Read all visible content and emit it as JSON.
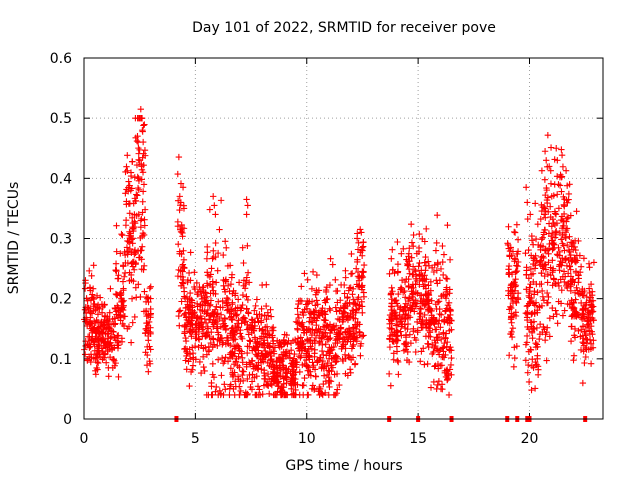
{
  "chart_data": {
    "type": "scatter",
    "title": "Day 101 of 2022, SRMTID for receiver pove",
    "xlabel": "GPS time / hours",
    "ylabel": "SRMTID / TECUs",
    "xlim": [
      0,
      23.3
    ],
    "ylim": [
      0,
      0.6
    ],
    "x_ticks": [
      0,
      5,
      10,
      15,
      20
    ],
    "x_tick_labels": [
      "0",
      "5",
      "10",
      "15",
      "20"
    ],
    "y_ticks": [
      0,
      0.1,
      0.2,
      0.3,
      0.4,
      0.5,
      0.6
    ],
    "y_tick_labels": [
      "0",
      "0.1",
      "0.2",
      "0.3",
      "0.4",
      "0.5",
      "0.6"
    ],
    "grid": true,
    "marker": "+",
    "color": "#ff0000",
    "series": [
      {
        "name": "SRMTID",
        "segments": [
          {
            "t0": 0.0,
            "t1": 0.5,
            "mean": 0.17,
            "spread": 0.035
          },
          {
            "t0": 0.5,
            "t1": 1.4,
            "mean": 0.14,
            "spread": 0.03
          },
          {
            "t0": 1.4,
            "t1": 1.8,
            "mean": 0.2,
            "spread": 0.06
          },
          {
            "t0": 1.8,
            "t1": 2.3,
            "mean": 0.29,
            "spread": 0.08
          },
          {
            "t0": 2.3,
            "t1": 2.75,
            "mean": 0.37,
            "spread": 0.09
          },
          {
            "t0": 2.75,
            "t1": 3.0,
            "mean": 0.16,
            "spread": 0.04
          },
          {
            "t0": 4.2,
            "t1": 4.5,
            "mean": 0.28,
            "spread": 0.08
          },
          {
            "t0": 4.5,
            "t1": 5.5,
            "mean": 0.16,
            "spread": 0.04
          },
          {
            "t0": 5.5,
            "t1": 6.4,
            "mean": 0.17,
            "spread": 0.07
          },
          {
            "t0": 6.4,
            "t1": 7.5,
            "mean": 0.14,
            "spread": 0.06
          },
          {
            "t0": 7.5,
            "t1": 8.5,
            "mean": 0.11,
            "spread": 0.04
          },
          {
            "t0": 8.5,
            "t1": 9.5,
            "mean": 0.08,
            "spread": 0.03
          },
          {
            "t0": 9.5,
            "t1": 10.3,
            "mean": 0.13,
            "spread": 0.05
          },
          {
            "t0": 10.3,
            "t1": 11.5,
            "mean": 0.13,
            "spread": 0.05
          },
          {
            "t0": 11.5,
            "t1": 12.2,
            "mean": 0.16,
            "spread": 0.04
          },
          {
            "t0": 12.2,
            "t1": 12.6,
            "mean": 0.22,
            "spread": 0.06
          },
          {
            "t0": 13.7,
            "t1": 14.5,
            "mean": 0.17,
            "spread": 0.05
          },
          {
            "t0": 14.5,
            "t1": 15.5,
            "mean": 0.2,
            "spread": 0.05
          },
          {
            "t0": 15.5,
            "t1": 16.5,
            "mean": 0.16,
            "spread": 0.06
          },
          {
            "t0": 19.0,
            "t1": 19.5,
            "mean": 0.22,
            "spread": 0.05
          },
          {
            "t0": 19.8,
            "t1": 20.5,
            "mean": 0.2,
            "spread": 0.07
          },
          {
            "t0": 20.5,
            "t1": 21.3,
            "mean": 0.28,
            "spread": 0.08
          },
          {
            "t0": 21.3,
            "t1": 21.8,
            "mean": 0.3,
            "spread": 0.06
          },
          {
            "t0": 21.8,
            "t1": 22.3,
            "mean": 0.22,
            "spread": 0.06
          },
          {
            "t0": 22.3,
            "t1": 22.9,
            "mean": 0.17,
            "spread": 0.04
          }
        ],
        "spikes": [
          {
            "x": 2.55,
            "y": 0.515
          },
          {
            "x": 2.6,
            "y": 0.5
          },
          {
            "x": 2.62,
            "y": 0.48
          },
          {
            "x": 2.5,
            "y": 0.43
          },
          {
            "x": 2.58,
            "y": 0.42
          },
          {
            "x": 2.65,
            "y": 0.41
          },
          {
            "x": 2.45,
            "y": 0.4
          },
          {
            "x": 2.1,
            "y": 0.38
          },
          {
            "x": 1.55,
            "y": 0.07
          },
          {
            "x": 4.3,
            "y": 0.37
          },
          {
            "x": 4.35,
            "y": 0.36
          },
          {
            "x": 5.8,
            "y": 0.37
          },
          {
            "x": 5.85,
            "y": 0.355
          },
          {
            "x": 5.9,
            "y": 0.34
          },
          {
            "x": 7.3,
            "y": 0.365
          },
          {
            "x": 7.35,
            "y": 0.355
          },
          {
            "x": 7.3,
            "y": 0.34
          },
          {
            "x": 9.0,
            "y": 0.04
          },
          {
            "x": 12.4,
            "y": 0.315
          },
          {
            "x": 12.45,
            "y": 0.31
          },
          {
            "x": 12.5,
            "y": 0.28
          },
          {
            "x": 13.7,
            "y": 0.075
          },
          {
            "x": 15.3,
            "y": 0.295
          },
          {
            "x": 15.8,
            "y": 0.28
          },
          {
            "x": 16.2,
            "y": 0.08
          },
          {
            "x": 16.25,
            "y": 0.07
          },
          {
            "x": 19.85,
            "y": 0.385
          },
          {
            "x": 19.9,
            "y": 0.36
          },
          {
            "x": 20.7,
            "y": 0.445
          },
          {
            "x": 20.75,
            "y": 0.43
          },
          {
            "x": 21.2,
            "y": 0.45
          },
          {
            "x": 21.25,
            "y": 0.43
          },
          {
            "x": 21.3,
            "y": 0.39
          },
          {
            "x": 21.8,
            "y": 0.39
          },
          {
            "x": 20.3,
            "y": 0.09
          },
          {
            "x": 20.35,
            "y": 0.1
          },
          {
            "x": 21.0,
            "y": 0.37
          }
        ],
        "zero_markers": [
          4.15,
          13.7,
          15.0,
          16.5,
          19.0,
          19.45,
          19.9,
          20.0,
          22.5
        ]
      }
    ]
  }
}
